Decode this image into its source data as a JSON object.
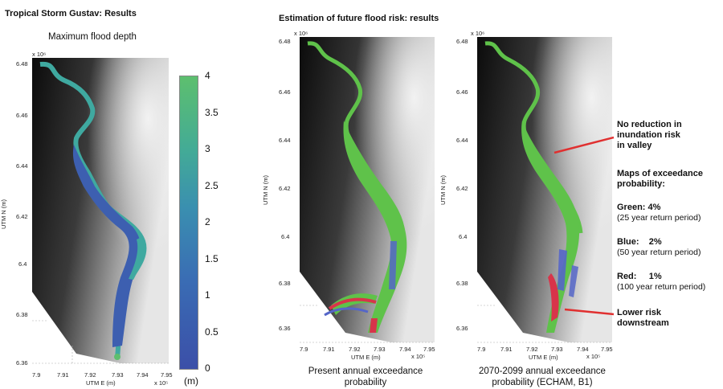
{
  "left_title": "Tropical Storm Gustav: Results",
  "right_title": "Estimation of future flood risk: results",
  "panel1": {
    "subtitle": "Maximum flood depth",
    "y_exponent": "x 10⁶",
    "x_exponent": "x 10⁵",
    "y_ticks": [
      "6.48",
      "6.46",
      "6.44",
      "6.42",
      "6.4",
      "6.38",
      "6.36"
    ],
    "x_ticks": [
      "7.9",
      "7.91",
      "7.92",
      "7.93",
      "7.94",
      "7.95"
    ],
    "ylabel": "UTM N (m)",
    "xlabel": "UTM E (m)"
  },
  "colorbar": {
    "ticks": [
      "4",
      "3.5",
      "3",
      "2.5",
      "2",
      "1.5",
      "1",
      "0.5",
      "0"
    ],
    "unit": "(m)",
    "color_top": "#5dbf6e",
    "color_bottom": "#3b4fa8"
  },
  "panel2": {
    "y_exponent": "x 10⁶",
    "x_exponent": "x 10⁵",
    "y_ticks": [
      "6.48",
      "6.46",
      "6.44",
      "6.42",
      "6.4",
      "6.38",
      "6.36"
    ],
    "x_ticks": [
      "7.9",
      "7.91",
      "7.92",
      "7.93",
      "7.94",
      "7.95"
    ],
    "ylabel": "UTM N (m)",
    "xlabel": "UTM E (m)",
    "caption_line1": "Present annual exceedance",
    "caption_line2": "probability"
  },
  "panel3": {
    "y_exponent": "x 10⁶",
    "x_exponent": "x 10⁵",
    "y_ticks": [
      "6.48",
      "6.46",
      "6.44",
      "6.42",
      "6.4",
      "6.38",
      "6.36"
    ],
    "x_ticks": [
      "7.9",
      "7.91",
      "7.92",
      "7.93",
      "7.94",
      "7.95"
    ],
    "ylabel": "UTM N (m)",
    "xlabel": "UTM E (m)",
    "caption_line1": "2070-2099 annual exceedance",
    "caption_line2": "probability (ECHAM, B1)"
  },
  "annotations": {
    "no_reduction": [
      "No reduction in",
      "inundation risk",
      "in valley"
    ],
    "maps_heading": [
      "Maps of exceedance",
      "probability:"
    ],
    "green_label": "Green: 4%",
    "green_period": "(25 year return period)",
    "blue_label": "Blue:    2%",
    "blue_period": "(50 year return period)",
    "red_label": "Red:     1%",
    "red_period": "(100 year return period)",
    "lower_risk": [
      "Lower risk",
      "downstream"
    ],
    "arrow_color": "#e03030"
  },
  "colors": {
    "flood_green": "#5fc24a",
    "risk_blue": "#5566c8",
    "risk_red": "#d8344a",
    "depth_blue": "#3d5fb0",
    "depth_teal": "#3fa9a0"
  }
}
